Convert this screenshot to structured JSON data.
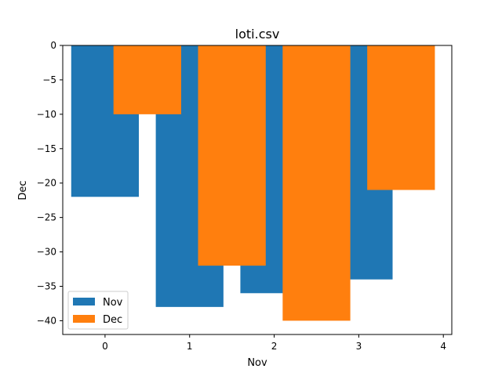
{
  "chart_data": {
    "type": "bar",
    "title": "loti.csv",
    "xlabel": "Nov",
    "ylabel": "Dec",
    "xlim": [
      -0.5,
      4.1
    ],
    "ylim": [
      -42,
      0
    ],
    "xticks": [
      0,
      1,
      2,
      3,
      4
    ],
    "yticks": [
      0,
      -5,
      -10,
      -15,
      -20,
      -25,
      -30,
      -35,
      -40
    ],
    "grid": false,
    "legend_position": "lower-left",
    "bar_width": 0.8,
    "series": [
      {
        "name": "Nov",
        "color": "#1f77b4",
        "x": [
          0,
          1,
          2,
          3
        ],
        "values": [
          -22,
          -38,
          -36,
          -34
        ]
      },
      {
        "name": "Dec",
        "color": "#ff7f0e",
        "x": [
          0.5,
          1.5,
          2.5,
          3.5
        ],
        "values": [
          -10,
          -32,
          -40,
          -21
        ]
      }
    ]
  }
}
